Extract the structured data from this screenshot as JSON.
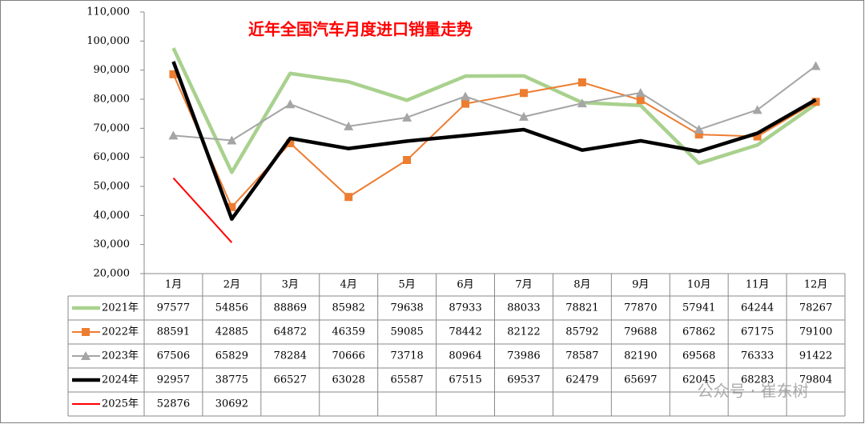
{
  "chart_data": {
    "type": "line",
    "title": "近年全国汽车月度进口销量走势",
    "watermark": "公众号 · 崔东树",
    "categories": [
      "1月",
      "2月",
      "3月",
      "4月",
      "5月",
      "6月",
      "7月",
      "8月",
      "9月",
      "10月",
      "11月",
      "12月"
    ],
    "series": [
      {
        "name": "2021年",
        "color": "#a9d18e",
        "marker": "none",
        "line_width": 4.5,
        "values": [
          97577,
          54856,
          88869,
          85982,
          79638,
          87933,
          88033,
          78821,
          77870,
          57941,
          64244,
          78267
        ]
      },
      {
        "name": "2022年",
        "color": "#ed7d31",
        "marker": "square",
        "line_width": 2,
        "values": [
          88591,
          42885,
          64872,
          46359,
          59085,
          78442,
          82122,
          85792,
          79688,
          67862,
          67175,
          79100
        ]
      },
      {
        "name": "2023年",
        "color": "#a5a5a5",
        "marker": "triangle",
        "line_width": 2,
        "values": [
          67506,
          65829,
          78284,
          70666,
          73718,
          80964,
          73986,
          78587,
          82190,
          69568,
          76333,
          91422
        ]
      },
      {
        "name": "2024年",
        "color": "#000000",
        "marker": "none",
        "line_width": 4.5,
        "values": [
          92957,
          38775,
          66527,
          63028,
          65587,
          67515,
          69537,
          62479,
          65697,
          62045,
          68283,
          79804
        ]
      },
      {
        "name": "2025年",
        "color": "#ff0000",
        "marker": "none",
        "line_width": 2,
        "values": [
          52876,
          30692,
          null,
          null,
          null,
          null,
          null,
          null,
          null,
          null,
          null,
          null
        ]
      }
    ],
    "ylim": [
      20000,
      110000
    ],
    "yticks": [
      {
        "value": 20000,
        "label": "20,000"
      },
      {
        "value": 30000,
        "label": "30,000"
      },
      {
        "value": 40000,
        "label": "40,000"
      },
      {
        "value": 50000,
        "label": "50,000"
      },
      {
        "value": 60000,
        "label": "60,000"
      },
      {
        "value": 70000,
        "label": "70,000"
      },
      {
        "value": 80000,
        "label": "80,000"
      },
      {
        "value": 90000,
        "label": "90,000"
      },
      {
        "value": 100000,
        "label": "100,000"
      },
      {
        "value": 110000,
        "label": "110,000"
      }
    ],
    "grid": false
  }
}
